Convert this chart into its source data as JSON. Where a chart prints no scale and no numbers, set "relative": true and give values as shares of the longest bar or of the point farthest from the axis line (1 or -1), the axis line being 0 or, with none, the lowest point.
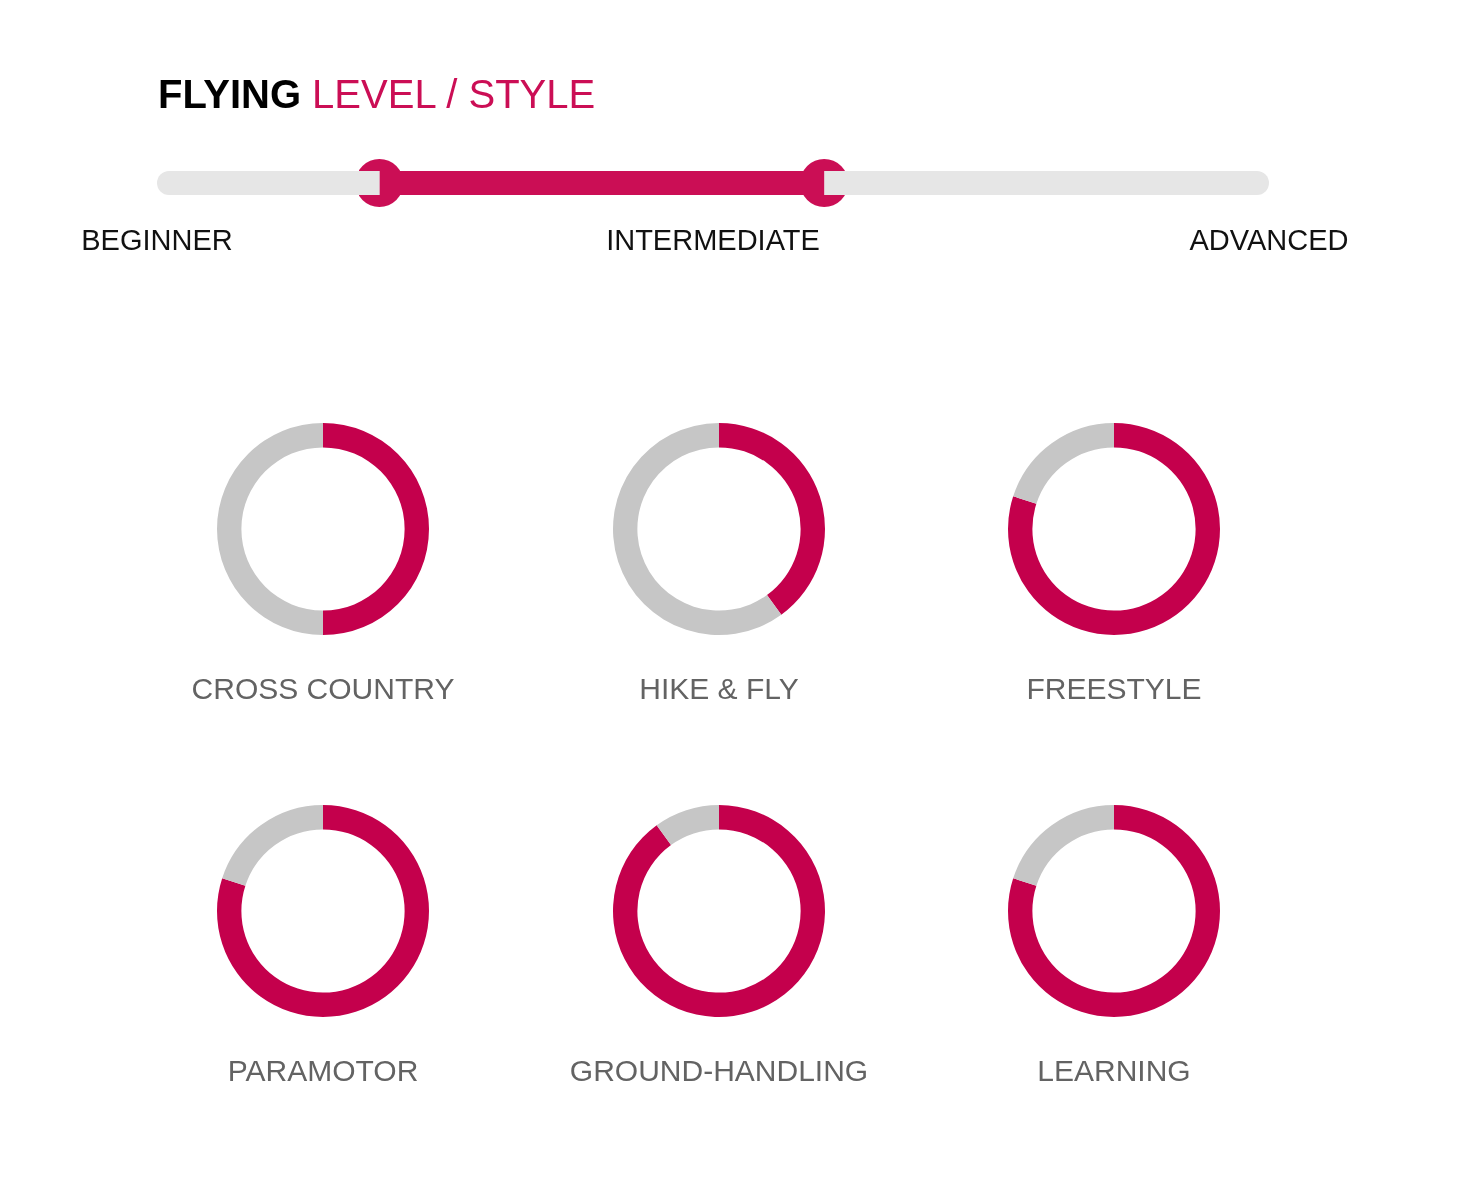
{
  "chart_data": [
    {
      "type": "bar",
      "orientation": "horizontal",
      "stacked": true,
      "relative": true,
      "title": "FLYING LEVEL / STYLE",
      "categories": [
        null
      ],
      "series": [
        {
          "color": "#e6e6e6",
          "values": [
            0.2
          ]
        },
        {
          "color": "#cb0e55",
          "values": [
            0.4
          ]
        },
        {
          "color": "#e6e6e6",
          "values": [
            0.4
          ]
        }
      ],
      "annotations": [
        "BEGINNER",
        "INTERMEDIATE",
        "ADVANCED"
      ]
    },
    {
      "type": "donut",
      "title": "CROSS COUNTRY",
      "categories": [
        null,
        null
      ],
      "values": [
        50,
        50
      ],
      "colors": [
        "#c4004c",
        "#c6c6c6"
      ]
    },
    {
      "type": "donut",
      "title": "HIKE & FLY",
      "categories": [
        null,
        null
      ],
      "values": [
        40,
        60
      ],
      "colors": [
        "#c4004c",
        "#c6c6c6"
      ]
    },
    {
      "type": "donut",
      "title": "FREESTYLE",
      "categories": [
        null,
        null
      ],
      "values": [
        80,
        20
      ],
      "colors": [
        "#c4004c",
        "#c6c6c6"
      ]
    },
    {
      "type": "donut",
      "title": "PARAMOTOR",
      "categories": [
        null,
        null
      ],
      "values": [
        80,
        20
      ],
      "colors": [
        "#c4004c",
        "#c6c6c6"
      ]
    },
    {
      "type": "donut",
      "title": "GROUND-HANDLING",
      "categories": [
        null,
        null
      ],
      "values": [
        90,
        10
      ],
      "colors": [
        "#c4004c",
        "#c6c6c6"
      ]
    },
    {
      "type": "donut",
      "title": "LEARNING",
      "categories": [
        null,
        null
      ],
      "values": [
        80,
        20
      ],
      "colors": [
        "#c4004c",
        "#c6c6c6"
      ]
    }
  ]
}
